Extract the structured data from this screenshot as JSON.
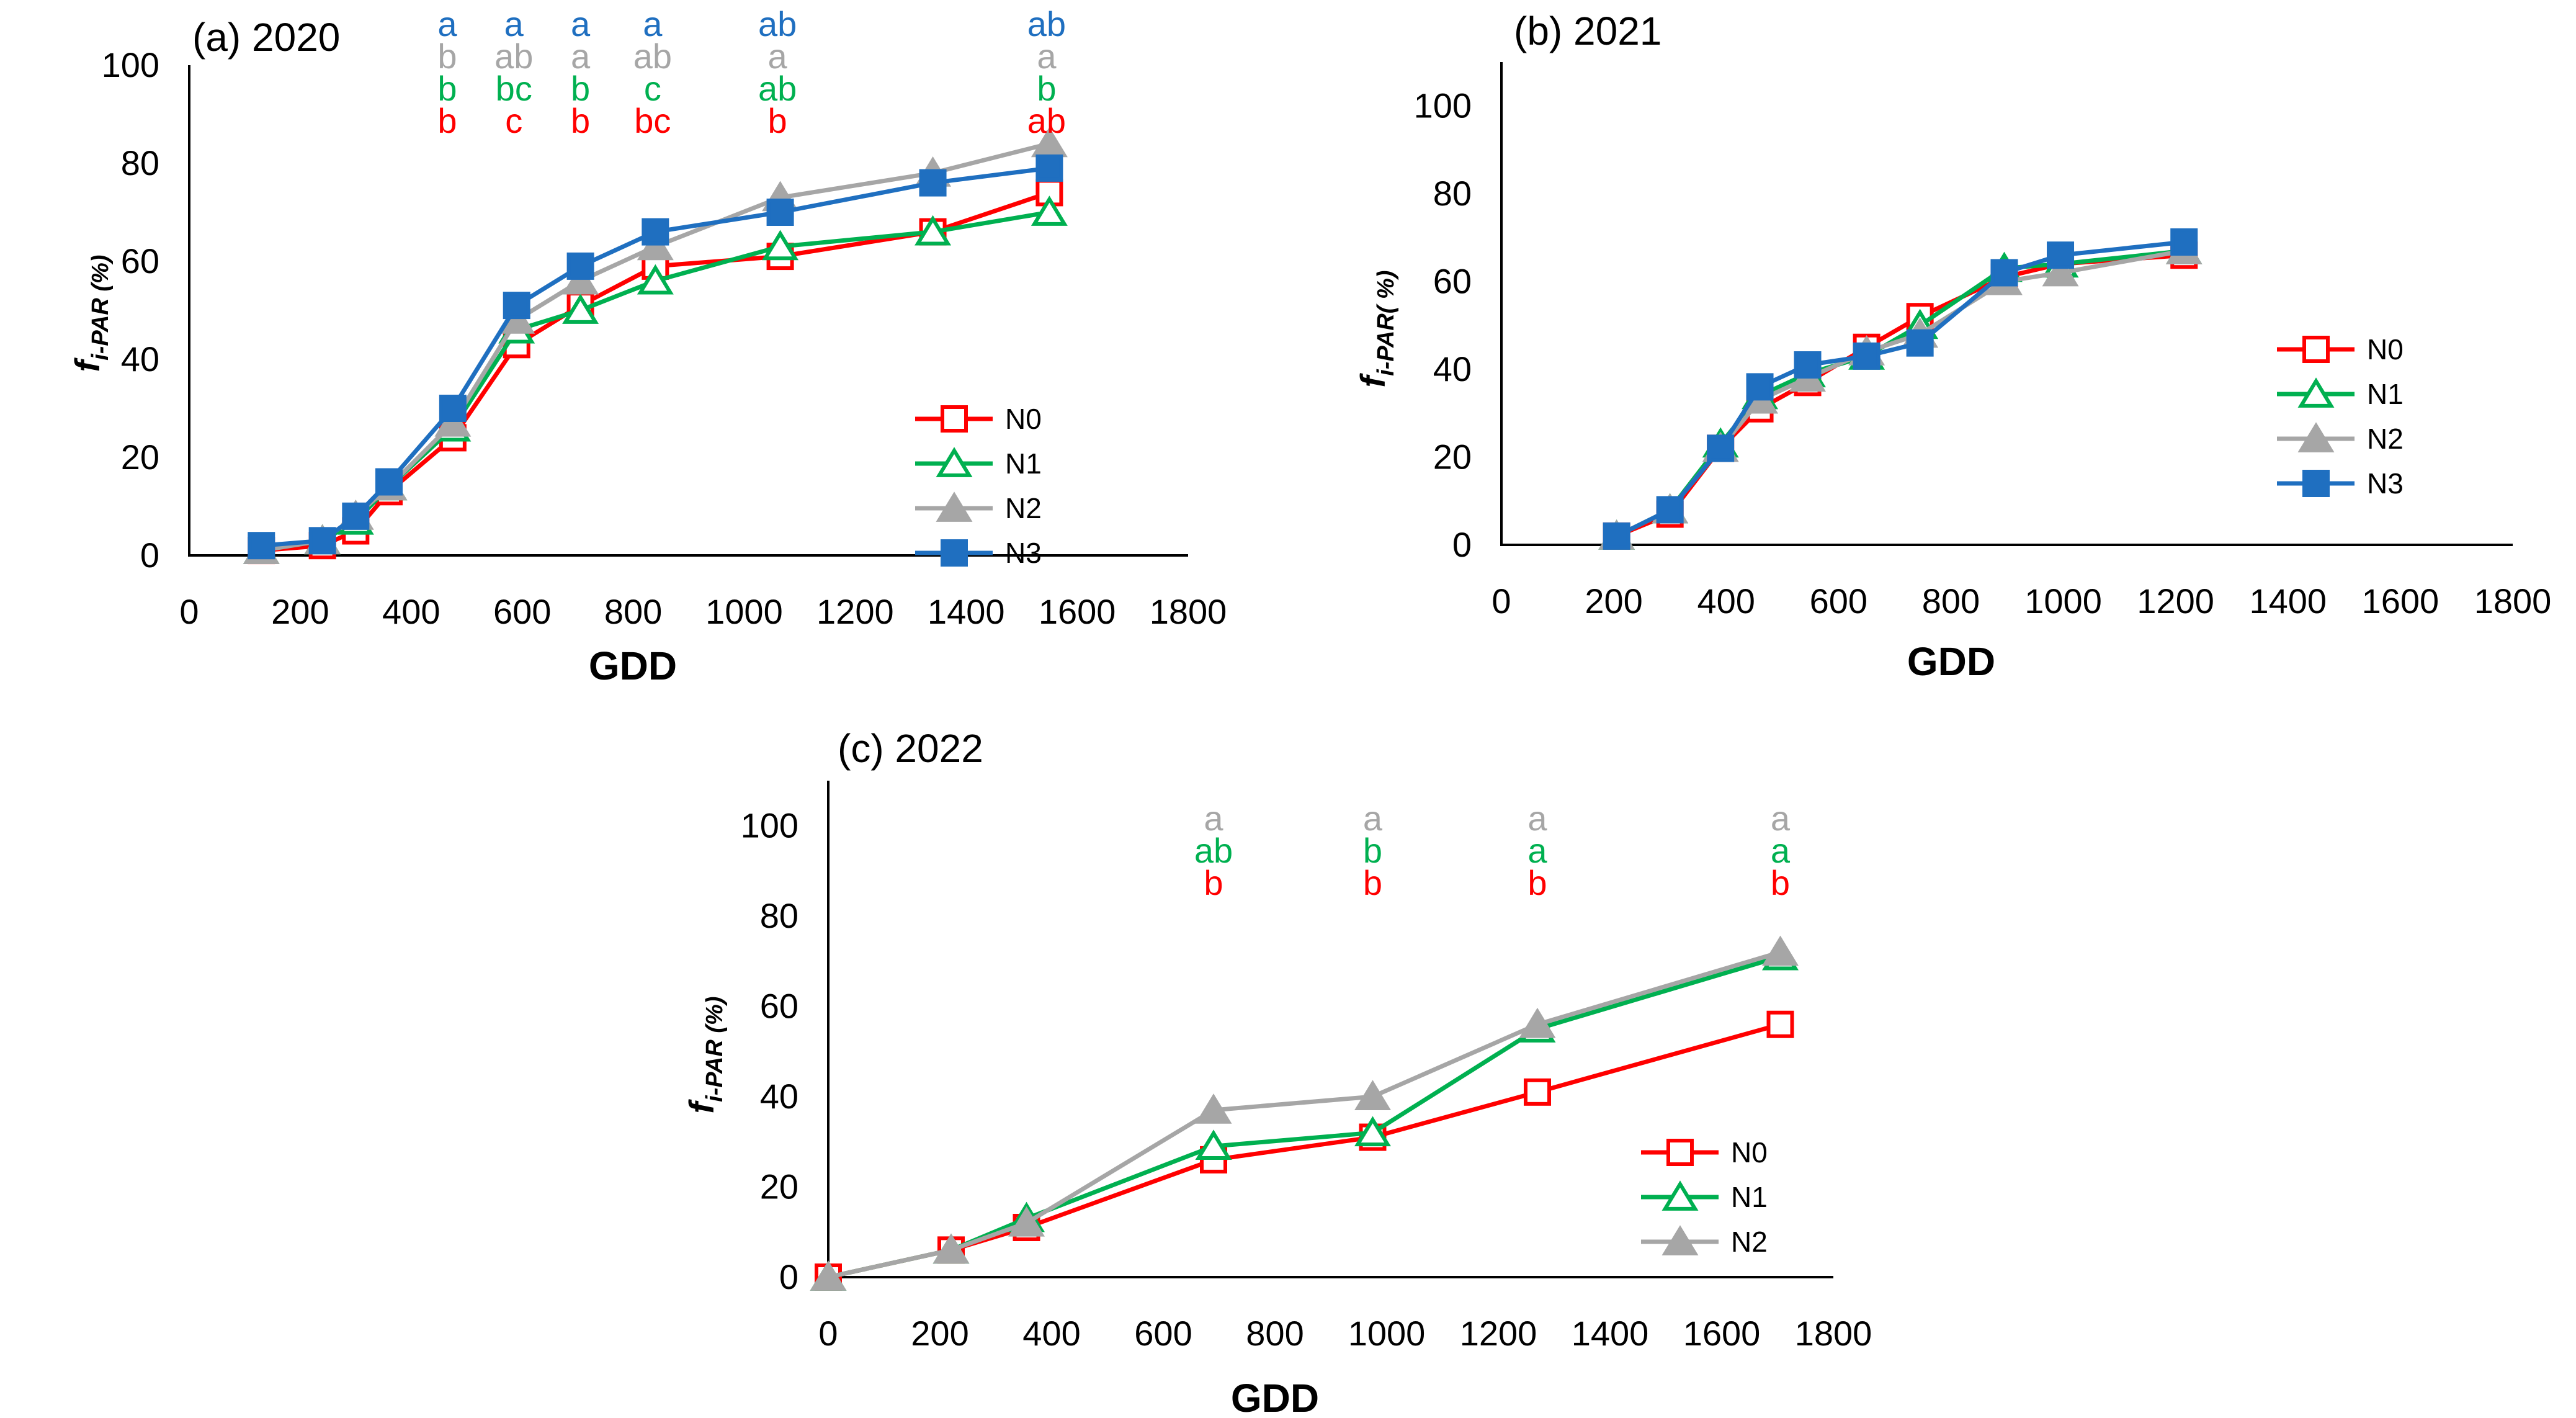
{
  "figure": {
    "series_colors": {
      "N0": "#ff0000",
      "N1": "#00b050",
      "N2": "#a6a6a6",
      "N3": "#1f6fc0"
    }
  },
  "chart_data": [
    {
      "type": "line",
      "title": "(a) 2020",
      "xlabel": "GDD",
      "ylabel_main": "f",
      "ylabel_sub": "i-PAR (%)",
      "xlim": [
        0,
        1800
      ],
      "ylim": [
        0,
        100
      ],
      "xticks": [
        "0",
        "200",
        "400",
        "600",
        "800",
        "1000",
        "1200",
        "1400",
        "1600",
        "1800"
      ],
      "yticks": [
        "0",
        "20",
        "40",
        "60",
        "80",
        "100"
      ],
      "legend_position": "bottom-right",
      "series": [
        {
          "name": "N0",
          "marker": "square-open",
          "x": [
            130,
            240,
            300,
            360,
            475,
            590,
            705,
            840,
            1065,
            1340,
            1550
          ],
          "y": [
            1,
            2,
            5,
            13,
            24,
            43,
            51,
            59,
            61,
            66,
            74
          ]
        },
        {
          "name": "N1",
          "marker": "triangle-open",
          "x": [
            130,
            240,
            300,
            360,
            475,
            590,
            705,
            840,
            1065,
            1340,
            1550
          ],
          "y": [
            1,
            3,
            7,
            14,
            26,
            46,
            50,
            56,
            63,
            66,
            70
          ]
        },
        {
          "name": "N2",
          "marker": "triangle-filled",
          "x": [
            130,
            240,
            300,
            360,
            475,
            590,
            705,
            840,
            1065,
            1340,
            1550
          ],
          "y": [
            1,
            3,
            8,
            14,
            27,
            48,
            56,
            63,
            73,
            78,
            84
          ]
        },
        {
          "name": "N3",
          "marker": "square-filled",
          "x": [
            130,
            240,
            300,
            360,
            475,
            590,
            705,
            840,
            1065,
            1340,
            1550
          ],
          "y": [
            2,
            3,
            8,
            15,
            30,
            51,
            59,
            66,
            70,
            76,
            79
          ]
        }
      ],
      "letters": [
        {
          "gdd": 465,
          "N3": "a",
          "N2": "b",
          "N1": "b",
          "N0": "b"
        },
        {
          "gdd": 585,
          "N3": "a",
          "N2": "ab",
          "N1": "bc",
          "N0": "c"
        },
        {
          "gdd": 705,
          "N3": "a",
          "N2": "a",
          "N1": "b",
          "N0": "b"
        },
        {
          "gdd": 835,
          "N3": "a",
          "N2": "ab",
          "N1": "c",
          "N0": "bc"
        },
        {
          "gdd": 1060,
          "N3": "ab",
          "N2": "a",
          "N1": "ab",
          "N0": "b"
        },
        {
          "gdd": 1545,
          "N3": "ab",
          "N2": "a",
          "N1": "b",
          "N0": "ab"
        }
      ]
    },
    {
      "type": "line",
      "title": "(b) 2021",
      "xlabel": "GDD",
      "ylabel_main": "f",
      "ylabel_sub": "i-PAR( %)",
      "xlim": [
        0,
        1800
      ],
      "ylim": [
        0,
        110
      ],
      "xticks": [
        "0",
        "200",
        "400",
        "600",
        "800",
        "1000",
        "1200",
        "1400",
        "1600",
        "1800"
      ],
      "yticks": [
        "0",
        "20",
        "40",
        "60",
        "80",
        "100"
      ],
      "legend_position": "right",
      "series": [
        {
          "name": "N0",
          "marker": "square-open",
          "x": [
            205,
            300,
            390,
            460,
            545,
            650,
            745,
            895,
            995,
            1215
          ],
          "y": [
            2,
            7,
            22,
            31,
            37,
            45,
            52,
            61,
            64,
            66
          ]
        },
        {
          "name": "N1",
          "marker": "triangle-open",
          "x": [
            205,
            300,
            390,
            460,
            545,
            650,
            745,
            895,
            995,
            1215
          ],
          "y": [
            2,
            8,
            23,
            34,
            39,
            43,
            50,
            63,
            64,
            67
          ]
        },
        {
          "name": "N2",
          "marker": "triangle-filled",
          "x": [
            205,
            300,
            390,
            460,
            545,
            650,
            745,
            895,
            995,
            1215
          ],
          "y": [
            2,
            8,
            22,
            33,
            38,
            44,
            48,
            60,
            62,
            67
          ]
        },
        {
          "name": "N3",
          "marker": "square-filled",
          "x": [
            205,
            300,
            390,
            460,
            545,
            650,
            745,
            895,
            995,
            1215
          ],
          "y": [
            2,
            8,
            22,
            36,
            41,
            43,
            46,
            62,
            66,
            69
          ]
        }
      ]
    },
    {
      "type": "line",
      "title": "(c) 2022",
      "xlabel": "GDD",
      "ylabel_main": "f",
      "ylabel_sub": "i-PAR (%)",
      "xlim": [
        0,
        1800
      ],
      "ylim": [
        0,
        110
      ],
      "xticks": [
        "0",
        "200",
        "400",
        "600",
        "800",
        "1000",
        "1200",
        "1400",
        "1600",
        "1800"
      ],
      "yticks": [
        "0",
        "20",
        "40",
        "60",
        "80",
        "100"
      ],
      "legend_position": "bottom-right",
      "series": [
        {
          "name": "N0",
          "marker": "square-open",
          "x": [
            0,
            220,
            355,
            690,
            975,
            1270,
            1705
          ],
          "y": [
            0,
            6,
            11,
            26,
            31,
            41,
            56
          ]
        },
        {
          "name": "N1",
          "marker": "triangle-open",
          "x": [
            0,
            220,
            355,
            690,
            975,
            1270,
            1705
          ],
          "y": [
            0,
            6,
            13,
            29,
            32,
            55,
            71
          ]
        },
        {
          "name": "N2",
          "marker": "triangle-filled",
          "x": [
            0,
            220,
            355,
            690,
            975,
            1270,
            1705
          ],
          "y": [
            0,
            6,
            12,
            37,
            40,
            56,
            72
          ]
        }
      ],
      "letters": [
        {
          "gdd": 690,
          "N2": "a",
          "N1": "ab",
          "N0": "b"
        },
        {
          "gdd": 975,
          "N2": "a",
          "N1": "b",
          "N0": "b"
        },
        {
          "gdd": 1270,
          "N2": "a",
          "N1": "a",
          "N0": "b"
        },
        {
          "gdd": 1705,
          "N2": "a",
          "N1": "a",
          "N0": "b"
        }
      ]
    }
  ]
}
